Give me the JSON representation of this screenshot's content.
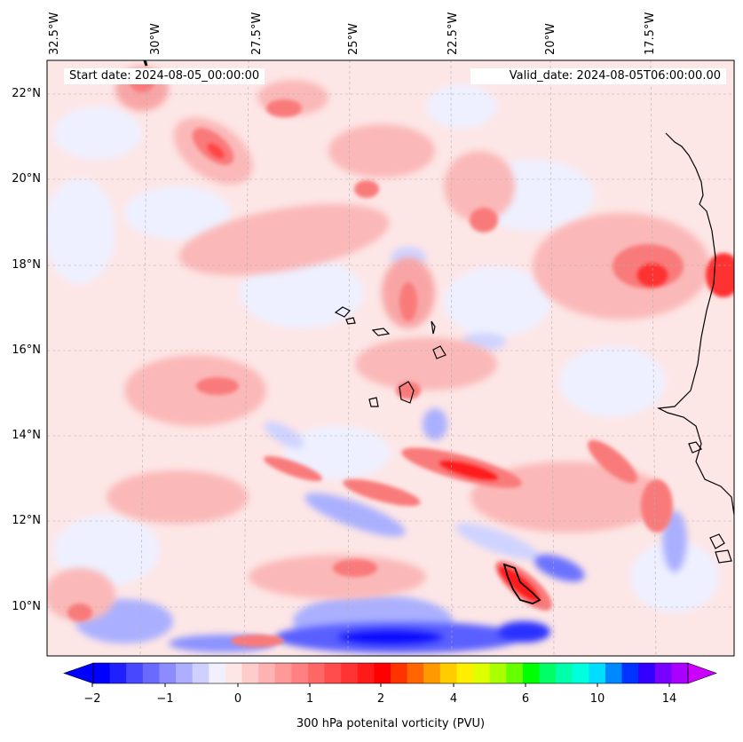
{
  "map": {
    "lon_labels": [
      "32.5°W",
      "30°W",
      "27.5°W",
      "25°W",
      "22.5°W",
      "20°W",
      "17.5°W"
    ],
    "lat_labels": [
      "22°N",
      "20°N",
      "18°N",
      "16°N",
      "14°N",
      "12°N",
      "10°N"
    ],
    "start_date": "Start date: 2024-08-05_00:00:00",
    "valid_date": "Valid_date: 2024-08-05T06:00:00.00",
    "colors": {
      "background_pink": "#fde6e6",
      "light_red": "#fbb8b8",
      "mid_red": "#f97a7a",
      "strong_red": "#ff1a1a",
      "light_blue": "#cfd3ff",
      "mid_blue": "#8c93ff",
      "strong_blue": "#1111ff",
      "coast": "#000000"
    }
  },
  "colorbar": {
    "label": "300 hPa potenital vorticity (PVU)",
    "ticks": [
      "−2",
      "−1",
      "0",
      "1",
      "2",
      "4",
      "6",
      "10",
      "14"
    ],
    "colors": [
      "#0000ff",
      "#2020ff",
      "#4848ff",
      "#6a6aff",
      "#8c8cff",
      "#aeaeff",
      "#d0d0ff",
      "#f0f0ff",
      "#ffe6e6",
      "#ffcccc",
      "#ffb2b2",
      "#ff9999",
      "#ff8080",
      "#ff6666",
      "#ff4d4d",
      "#ff3333",
      "#ff1a1a",
      "#ff0000",
      "#ff3300",
      "#ff6600",
      "#ff9900",
      "#ffcc00",
      "#ffee00",
      "#ddff00",
      "#aaff00",
      "#66ff00",
      "#00ff00",
      "#00ff66",
      "#00ffaa",
      "#00ffdd",
      "#00ddff",
      "#0088ff",
      "#0033ff",
      "#3300ff",
      "#7700ff",
      "#aa00ff"
    ]
  }
}
